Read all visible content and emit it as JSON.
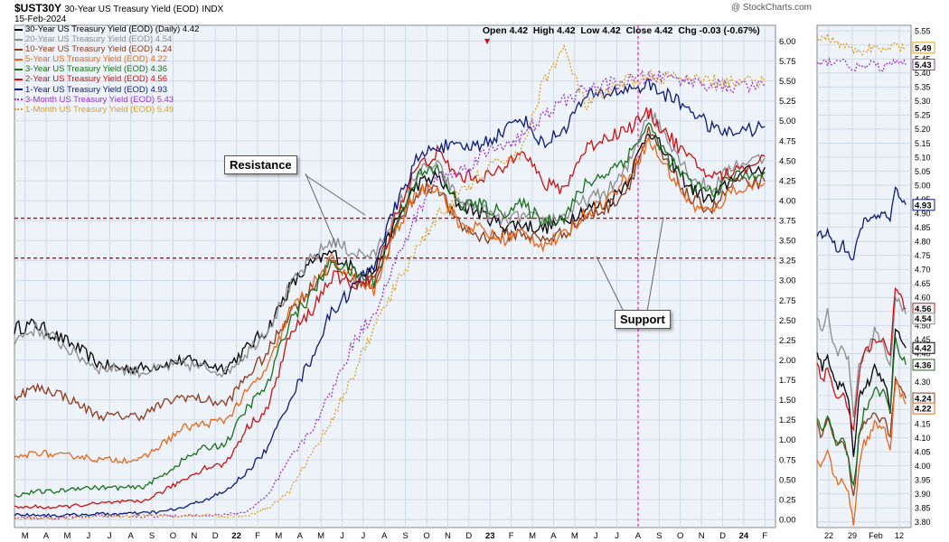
{
  "header": {
    "symbol": "$UST30Y",
    "name": "30-Year US Treasury Yield (EOD)",
    "exchange": "INDX",
    "date": "15-Feb-2024",
    "watermark": "@ StockCharts.com",
    "ohlc": "Open 4.42  High 4.42  Low 4.42  Close 4.42  Chg -0.03 (-0.67%)",
    "arrow": "▼"
  },
  "legend": [
    {
      "label": "30-Year US Treasury Yield (EOD) (Daily) 4.42",
      "color": "#000000",
      "style": "solid"
    },
    {
      "label": "20-Year US Treasury Yield (EOD) 4.54",
      "color": "#8c8c8c",
      "style": "solid"
    },
    {
      "label": "10-Year US Treasury Yield (EOD) 4.24",
      "color": "#8b3a1c",
      "style": "solid"
    },
    {
      "label": "5-Year US Treasury Yield (EOD) 4.22",
      "color": "#e8661a",
      "style": "solid"
    },
    {
      "label": "3-Year US Treasury Yield (EOD) 4.36",
      "color": "#1a6e1a",
      "style": "solid"
    },
    {
      "label": "2-Year US Treasury Yield (EOD) 4.56",
      "color": "#cc1111",
      "style": "solid"
    },
    {
      "label": "1-Year US Treasury Yield (EOD) 4.93",
      "color": "#0c1a7a",
      "style": "solid"
    },
    {
      "label": "3-Month US Treasury Yield (EOD) 5.43",
      "color": "#9933cc",
      "style": "dotted"
    },
    {
      "label": "1-Month US Treasury Yield (EOD) 5.49",
      "color": "#d9a020",
      "style": "dotted"
    }
  ],
  "annotations": {
    "resistance": "Resistance",
    "support": "Support"
  },
  "chart_data": [
    {
      "type": "line",
      "y_axis_side": "right",
      "ylim": [
        -0.1,
        6.2
      ],
      "yticks": [
        "0.00",
        "0.25",
        "0.50",
        "0.75",
        "1.00",
        "1.25",
        "1.50",
        "1.75",
        "2.00",
        "2.25",
        "2.50",
        "2.75",
        "3.00",
        "3.25",
        "3.50",
        "3.75",
        "4.00",
        "4.25",
        "4.50",
        "4.75",
        "5.00",
        "5.25",
        "5.50",
        "5.75",
        "6.00"
      ],
      "xticks": [
        "M",
        "A",
        "M",
        "J",
        "J",
        "A",
        "S",
        "O",
        "N",
        "D",
        "22",
        "F",
        "M",
        "A",
        "M",
        "J",
        "J",
        "A",
        "S",
        "O",
        "N",
        "D",
        "23",
        "F",
        "M",
        "A",
        "M",
        "J",
        "J",
        "A",
        "S",
        "O",
        "N",
        "D",
        "24",
        "F"
      ],
      "xlim": [
        0,
        36
      ],
      "hlines": [
        3.78,
        3.28
      ],
      "vline_x": 29.5,
      "grid": true,
      "series_names": [
        "30-Year",
        "20-Year",
        "10-Year",
        "5-Year",
        "3-Year",
        "2-Year",
        "1-Year",
        "3-Month",
        "1-Month"
      ],
      "series_x": [
        0,
        1,
        2,
        3,
        4,
        5,
        6,
        7,
        8,
        9,
        10,
        11,
        12,
        13,
        14,
        15,
        16,
        17,
        18,
        19,
        20,
        21,
        22,
        23,
        24,
        25,
        26,
        27,
        28,
        29,
        30,
        31,
        32,
        33,
        34,
        35.5
      ],
      "series": [
        {
          "name": "30-Year",
          "color": "#000000",
          "style": "solid",
          "values": [
            2.4,
            2.45,
            2.3,
            2.15,
            1.95,
            1.9,
            1.9,
            1.95,
            2.0,
            1.95,
            1.9,
            2.15,
            2.4,
            2.9,
            3.2,
            3.35,
            3.15,
            3.1,
            3.7,
            4.2,
            4.3,
            3.95,
            3.85,
            3.7,
            3.7,
            3.65,
            3.75,
            3.9,
            3.95,
            4.25,
            4.9,
            4.5,
            4.15,
            4.0,
            4.3,
            4.42
          ]
        },
        {
          "name": "20-Year",
          "color": "#8c8c8c",
          "style": "solid",
          "values": [
            2.25,
            2.4,
            2.25,
            2.05,
            1.9,
            1.9,
            1.85,
            1.9,
            1.95,
            1.9,
            1.85,
            2.1,
            2.4,
            2.9,
            3.25,
            3.5,
            3.35,
            3.3,
            3.85,
            4.35,
            4.45,
            4.0,
            3.9,
            3.75,
            3.8,
            3.75,
            3.8,
            4.0,
            4.1,
            4.4,
            5.15,
            4.75,
            4.3,
            4.15,
            4.45,
            4.54
          ]
        },
        {
          "name": "10-Year",
          "color": "#8b3a1c",
          "style": "solid",
          "values": [
            1.55,
            1.65,
            1.6,
            1.45,
            1.3,
            1.3,
            1.3,
            1.45,
            1.55,
            1.5,
            1.45,
            1.8,
            2.1,
            2.6,
            2.9,
            3.2,
            3.0,
            2.95,
            3.6,
            4.1,
            4.2,
            3.7,
            3.55,
            3.55,
            3.6,
            3.5,
            3.6,
            3.8,
            3.9,
            4.15,
            4.85,
            4.4,
            4.0,
            3.9,
            4.2,
            4.24
          ]
        },
        {
          "name": "5-Year",
          "color": "#e8661a",
          "style": "solid",
          "values": [
            0.75,
            0.85,
            0.8,
            0.8,
            0.75,
            0.75,
            0.75,
            0.95,
            1.15,
            1.2,
            1.25,
            1.6,
            1.9,
            2.6,
            2.9,
            3.25,
            3.05,
            2.85,
            3.6,
            4.1,
            4.2,
            3.7,
            3.65,
            3.5,
            3.6,
            3.45,
            3.55,
            3.85,
            4.0,
            4.3,
            4.75,
            4.35,
            3.95,
            3.85,
            4.15,
            4.22
          ]
        },
        {
          "name": "3-Year",
          "color": "#1a6e1a",
          "style": "solid",
          "values": [
            0.3,
            0.35,
            0.35,
            0.4,
            0.4,
            0.4,
            0.4,
            0.55,
            0.75,
            0.9,
            0.95,
            1.4,
            1.7,
            2.5,
            2.8,
            3.25,
            3.1,
            3.0,
            3.7,
            4.3,
            4.4,
            3.95,
            3.95,
            3.85,
            3.95,
            3.75,
            3.8,
            4.2,
            4.35,
            4.55,
            4.95,
            4.5,
            4.2,
            4.1,
            4.3,
            4.36
          ]
        },
        {
          "name": "2-Year",
          "color": "#cc1111",
          "style": "solid",
          "values": [
            0.15,
            0.16,
            0.15,
            0.18,
            0.2,
            0.22,
            0.22,
            0.35,
            0.5,
            0.65,
            0.7,
            1.15,
            1.4,
            2.3,
            2.6,
            3.05,
            2.95,
            3.0,
            3.8,
            4.4,
            4.6,
            4.3,
            4.3,
            4.35,
            4.7,
            4.2,
            4.15,
            4.65,
            4.8,
            4.9,
            5.1,
            4.8,
            4.5,
            4.3,
            4.35,
            4.56
          ]
        },
        {
          "name": "1-Year",
          "color": "#0c1a7a",
          "style": "solid",
          "values": [
            0.06,
            0.06,
            0.05,
            0.06,
            0.07,
            0.07,
            0.08,
            0.1,
            0.15,
            0.25,
            0.35,
            0.6,
            0.9,
            1.5,
            2.0,
            2.6,
            2.9,
            3.2,
            3.9,
            4.5,
            4.7,
            4.65,
            4.7,
            4.85,
            5.05,
            4.7,
            4.9,
            5.3,
            5.35,
            5.4,
            5.45,
            5.3,
            5.15,
            4.9,
            4.85,
            4.93
          ]
        },
        {
          "name": "3-Month",
          "color": "#9933cc",
          "style": "dotted",
          "values": [
            0.02,
            0.02,
            0.02,
            0.04,
            0.05,
            0.04,
            0.04,
            0.05,
            0.05,
            0.05,
            0.06,
            0.1,
            0.3,
            0.75,
            1.1,
            1.6,
            2.2,
            2.6,
            3.2,
            3.8,
            4.3,
            4.35,
            4.55,
            4.7,
            4.8,
            5.05,
            5.25,
            5.4,
            5.45,
            5.5,
            5.55,
            5.55,
            5.5,
            5.45,
            5.42,
            5.43
          ]
        },
        {
          "name": "1-Month",
          "color": "#d9a020",
          "style": "dotted",
          "values": [
            0.01,
            0.02,
            0.01,
            0.02,
            0.03,
            0.04,
            0.05,
            0.05,
            0.05,
            0.06,
            0.04,
            0.05,
            0.15,
            0.35,
            0.8,
            1.25,
            1.8,
            2.4,
            2.9,
            3.4,
            3.8,
            4.05,
            4.3,
            4.5,
            4.6,
            5.5,
            5.9,
            5.2,
            5.35,
            5.5,
            5.55,
            5.55,
            5.5,
            5.5,
            5.48,
            5.49
          ]
        }
      ]
    },
    {
      "type": "line",
      "y_axis_side": "right",
      "ylim": [
        3.78,
        5.57
      ],
      "yticks": [
        "3.80",
        "3.85",
        "3.90",
        "3.95",
        "4.00",
        "4.05",
        "4.10",
        "4.15",
        "4.20",
        "4.25",
        "4.30",
        "4.35",
        "4.40",
        "4.45",
        "4.50",
        "4.55",
        "4.60",
        "4.65",
        "4.70",
        "4.75",
        "4.80",
        "4.85",
        "4.90",
        "4.95",
        "5.00",
        "5.05",
        "5.10",
        "5.15",
        "5.20",
        "5.25",
        "5.30",
        "5.35",
        "5.40",
        "5.45",
        "5.50",
        "5.55"
      ],
      "xticks": [
        "22",
        "29",
        "Feb",
        "12"
      ],
      "xlim": [
        0,
        18
      ],
      "end_labels": [
        "5.49",
        "5.43",
        "4.93",
        "4.56",
        "4.54",
        "4.42",
        "4.36",
        "4.24",
        "4.22"
      ],
      "grid": true,
      "series_x": [
        0,
        1,
        2,
        3,
        4,
        5,
        6,
        7,
        8,
        9,
        10,
        11,
        12,
        13,
        14,
        15,
        16,
        17
      ],
      "series": [
        {
          "name": "30-Year",
          "color": "#000000",
          "style": "solid",
          "values": [
            4.4,
            4.35,
            4.4,
            4.32,
            4.28,
            4.3,
            4.25,
            4.02,
            4.25,
            4.28,
            4.3,
            4.35,
            4.32,
            4.3,
            4.2,
            4.48,
            4.46,
            4.42
          ]
        },
        {
          "name": "20-Year",
          "color": "#8c8c8c",
          "style": "solid",
          "values": [
            4.52,
            4.48,
            4.55,
            4.45,
            4.4,
            4.42,
            4.38,
            4.18,
            4.36,
            4.4,
            4.42,
            4.48,
            4.45,
            4.42,
            4.35,
            4.6,
            4.57,
            4.54
          ]
        },
        {
          "name": "10-Year",
          "color": "#8b3a1c",
          "style": "solid",
          "values": [
            4.15,
            4.1,
            4.17,
            4.1,
            4.07,
            4.08,
            4.02,
            3.88,
            4.1,
            4.15,
            4.17,
            4.2,
            4.17,
            4.17,
            4.1,
            4.32,
            4.28,
            4.24
          ]
        },
        {
          "name": "5-Year",
          "color": "#e8661a",
          "style": "solid",
          "values": [
            4.03,
            4.0,
            4.05,
            3.98,
            3.93,
            3.95,
            3.9,
            3.8,
            3.98,
            4.08,
            4.1,
            4.15,
            4.13,
            4.13,
            4.05,
            4.3,
            4.26,
            4.22
          ]
        },
        {
          "name": "3-Year",
          "color": "#1a6e1a",
          "style": "solid",
          "values": [
            4.18,
            4.12,
            4.18,
            4.12,
            4.07,
            4.09,
            4.03,
            3.92,
            4.1,
            4.2,
            4.22,
            4.28,
            4.26,
            4.26,
            4.18,
            4.45,
            4.4,
            4.36
          ]
        },
        {
          "name": "2-Year",
          "color": "#cc1111",
          "style": "solid",
          "values": [
            4.38,
            4.3,
            4.35,
            4.28,
            4.24,
            4.25,
            4.2,
            4.13,
            4.32,
            4.4,
            4.42,
            4.45,
            4.44,
            4.44,
            4.38,
            4.64,
            4.6,
            4.56
          ]
        },
        {
          "name": "1-Year",
          "color": "#0c1a7a",
          "style": "solid",
          "values": [
            4.83,
            4.82,
            4.84,
            4.8,
            4.77,
            4.79,
            4.75,
            4.74,
            4.82,
            4.87,
            4.88,
            4.89,
            4.89,
            4.9,
            4.88,
            4.99,
            4.95,
            4.93
          ]
        },
        {
          "name": "3-Month",
          "color": "#9933cc",
          "style": "dotted",
          "values": [
            5.43,
            5.43,
            5.44,
            5.44,
            5.45,
            5.44,
            5.43,
            5.42,
            5.42,
            5.42,
            5.43,
            5.43,
            5.42,
            5.42,
            5.43,
            5.44,
            5.43,
            5.43
          ]
        },
        {
          "name": "1-Month",
          "color": "#d9a020",
          "style": "dotted",
          "values": [
            5.53,
            5.52,
            5.53,
            5.52,
            5.51,
            5.5,
            5.49,
            5.48,
            5.48,
            5.48,
            5.49,
            5.49,
            5.48,
            5.48,
            5.49,
            5.5,
            5.49,
            5.49
          ]
        }
      ]
    }
  ]
}
